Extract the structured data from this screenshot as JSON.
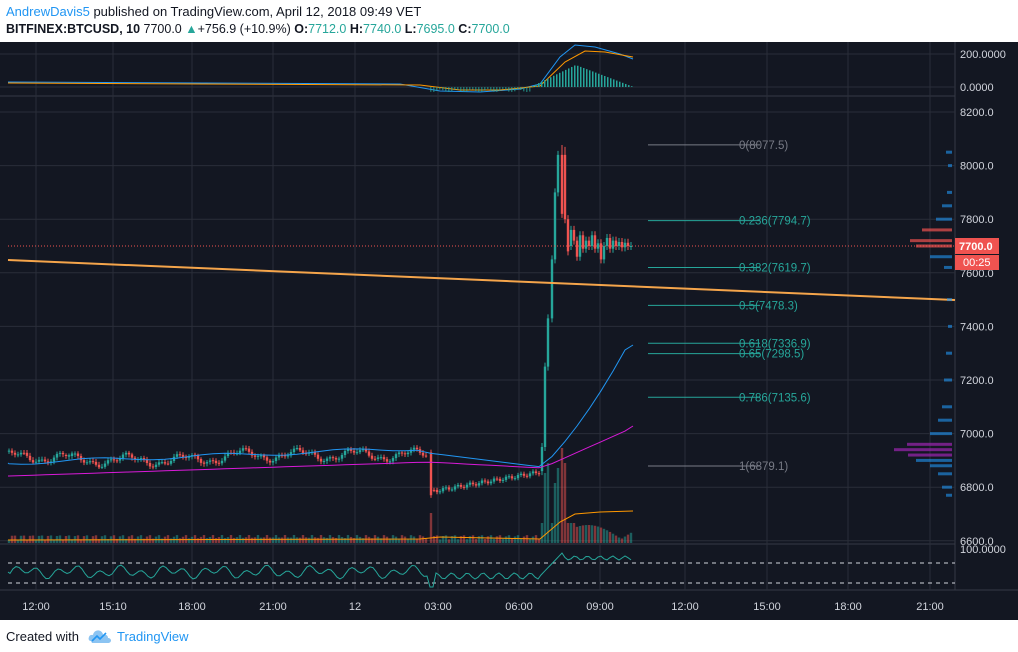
{
  "header": {
    "author": "AndrewDavis5",
    "published_text": "published on TradingView.com, April 12, 2018 09:49 VET",
    "symbol": "BITFINEX:BTCUSD, 10",
    "last": "7700.0",
    "change_arrow": "▲",
    "change": "+756.9 (+10.9%)",
    "o_label": "O:",
    "o": "7712.0",
    "h_label": "H:",
    "h": "7740.0",
    "l_label": "L:",
    "l": "7695.0",
    "c_label": "C:",
    "c": "7700.0"
  },
  "macd_axis": [
    "200.0000",
    "0.0000"
  ],
  "price_axis": [
    "8200.0",
    "8000.0",
    "7800.0",
    "7600.0",
    "7400.0",
    "7200.0",
    "7000.0",
    "6800.0",
    "6600.0"
  ],
  "rsi_axis": [
    "100.0000"
  ],
  "price_label": "7700.0",
  "countdown": "00:25",
  "fib_levels": [
    {
      "label": "0(8077.5)",
      "price": 8077.5,
      "color": "#787b86"
    },
    {
      "label": "0.236(7794.7)",
      "price": 7794.7,
      "color": "#26a69a"
    },
    {
      "label": "0.382(7619.7)",
      "price": 7619.7,
      "color": "#26a69a"
    },
    {
      "label": "0.5(7478.3)",
      "price": 7478.3,
      "color": "#26a69a"
    },
    {
      "label": "0.618(7336.9)",
      "price": 7336.9,
      "color": "#26a69a"
    },
    {
      "label": "0.65(7298.5)",
      "price": 7298.5,
      "color": "#26a69a"
    },
    {
      "label": "0.786(7135.6)",
      "price": 7135.6,
      "color": "#26a69a"
    },
    {
      "label": "1(6879.1)",
      "price": 6879.1,
      "color": "#787b86"
    }
  ],
  "time_axis": [
    "12:00",
    "15:10",
    "18:00",
    "21:00",
    "12",
    "03:00",
    "06:00",
    "09:00",
    "12:00",
    "15:00",
    "18:00",
    "21:00"
  ],
  "footer": {
    "created_with": "Created with",
    "brand": "TradingView"
  },
  "colors": {
    "up": "#26a69a",
    "down": "#ef5350",
    "trendline": "#f5a54b",
    "ma_blue": "#2196f3",
    "ma_magenta": "#d81ad8",
    "background": "#131722"
  }
}
